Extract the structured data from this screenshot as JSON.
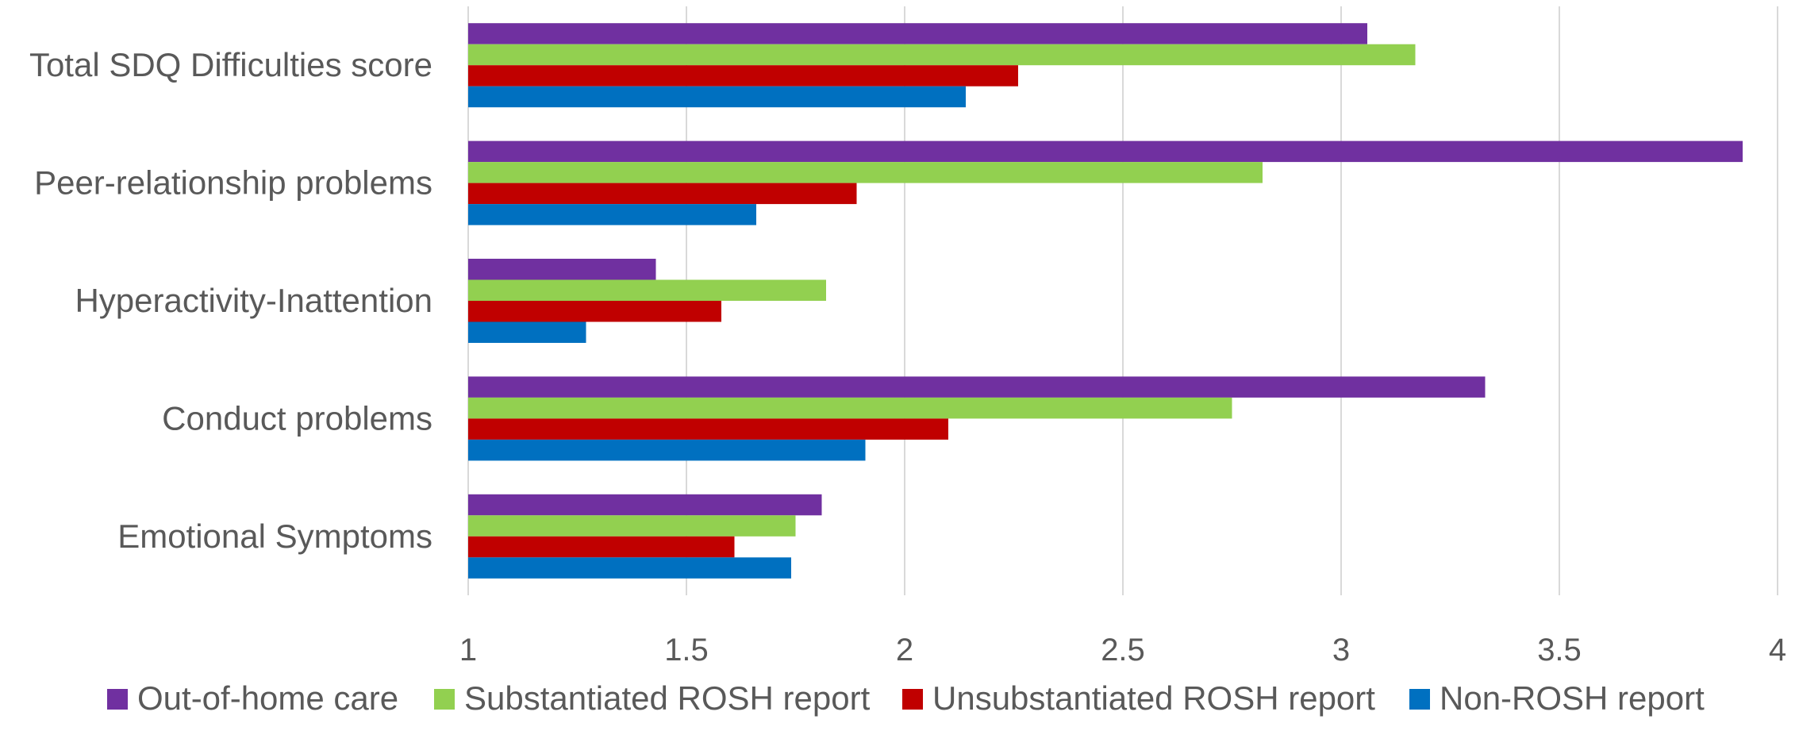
{
  "chart_data": {
    "type": "bar",
    "orientation": "horizontal",
    "title": "",
    "xlabel": "",
    "ylabel": "",
    "xlim": [
      1,
      4
    ],
    "x_ticks": [
      1,
      1.5,
      2,
      2.5,
      3,
      3.5,
      4
    ],
    "x_tick_labels": [
      "1",
      "1.5",
      "2",
      "2.5",
      "3",
      "3.5",
      "4"
    ],
    "grid": true,
    "legend_position": "bottom",
    "categories": [
      "Total SDQ Difficulties score",
      "Peer-relationship problems",
      "Hyperactivity-Inattention",
      "Conduct problems",
      "Emotional Symptoms"
    ],
    "series": [
      {
        "name": "Out-of-home care",
        "color": "#7030A0",
        "values": [
          3.06,
          3.92,
          1.43,
          3.33,
          1.81
        ]
      },
      {
        "name": "Substantiated ROSH report",
        "color": "#92D050",
        "values": [
          3.17,
          2.82,
          1.82,
          2.75,
          1.75
        ]
      },
      {
        "name": "Unsubstantiated ROSH report",
        "color": "#C00000",
        "values": [
          2.26,
          1.89,
          1.58,
          2.1,
          1.61
        ]
      },
      {
        "name": "Non-ROSH report",
        "color": "#0070C0",
        "values": [
          2.14,
          1.66,
          1.27,
          1.91,
          1.74
        ]
      }
    ]
  }
}
